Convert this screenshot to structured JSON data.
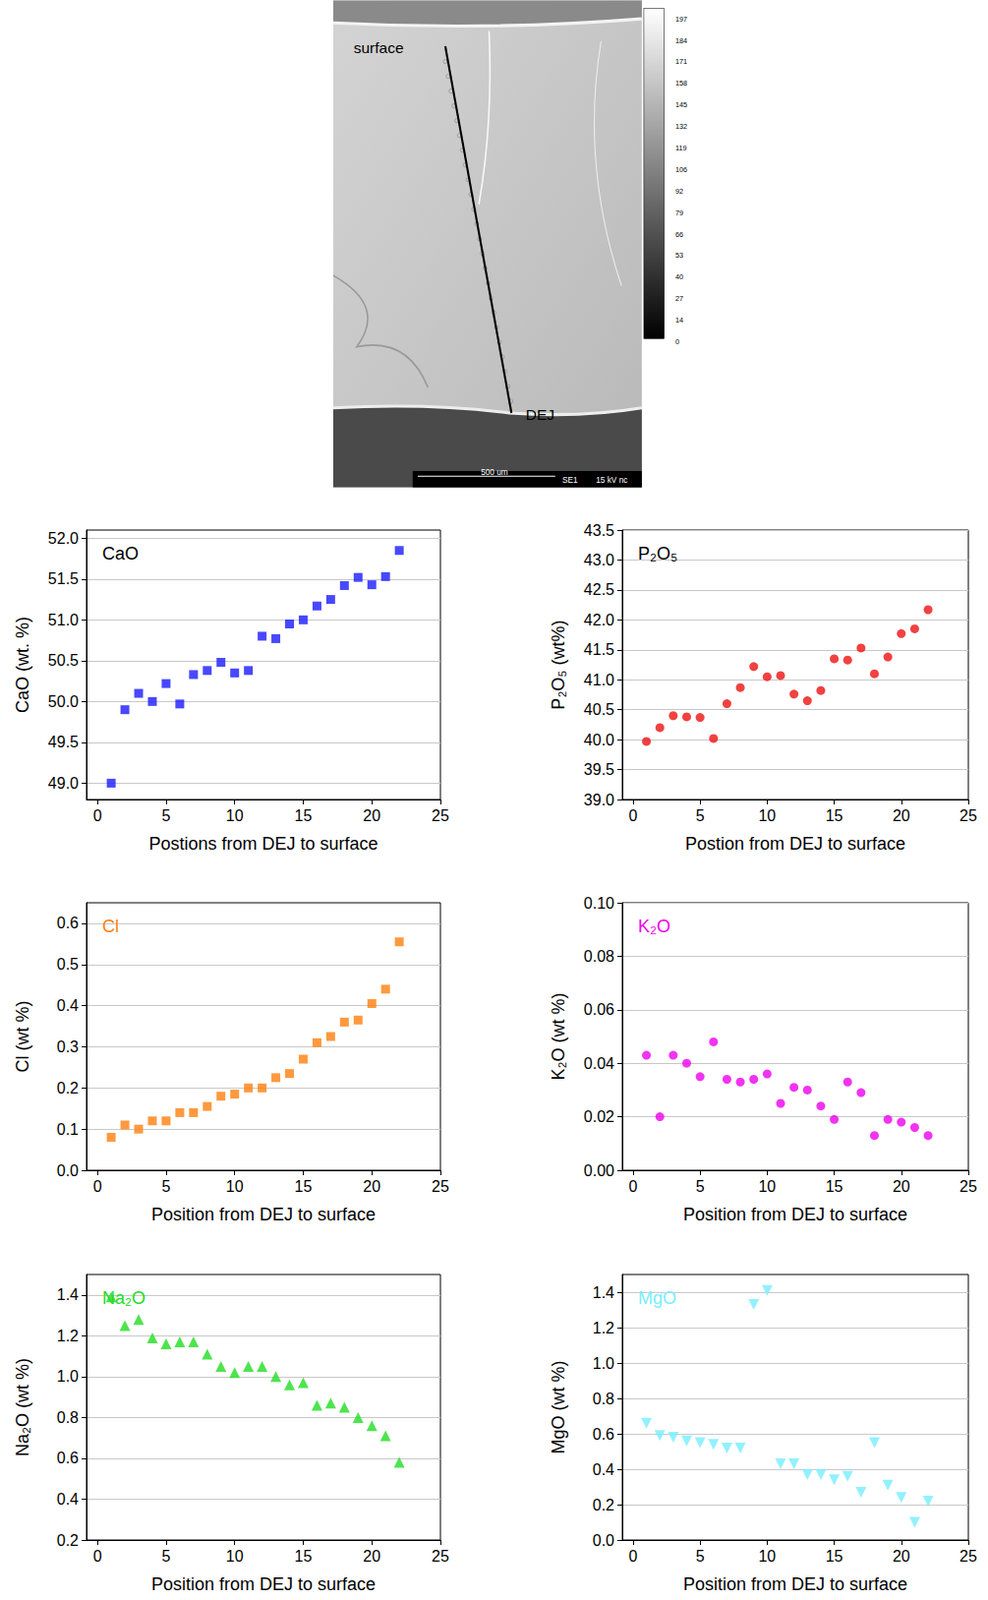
{
  "micrograph": {
    "labels": [
      "surface",
      "DEJ"
    ],
    "colorbar_ticks": [
      197,
      184,
      171,
      158,
      145,
      132,
      119,
      106,
      92,
      79,
      66,
      53,
      40,
      27,
      14,
      0
    ],
    "scale_bar": "500 um",
    "detector": "SE1",
    "voltage": "15 kV nc"
  },
  "chart_data": [
    {
      "type": "scatter",
      "x_label": "Postions from DEJ to surface",
      "y_label": "CaO (wt. %)",
      "legend": "top-left",
      "grid": true,
      "xlim": [
        -0.8,
        25
      ],
      "xticks": [
        0,
        5,
        10,
        15,
        20,
        25
      ],
      "ylim": [
        48.8,
        52.1
      ],
      "yticks": [
        {
          "value": 49,
          "label": "49.0"
        },
        49.5,
        {
          "value": 50,
          "label": "50.0"
        },
        50.5,
        {
          "value": 51,
          "label": "51.0"
        },
        51.5,
        {
          "value": 52,
          "label": "52.0"
        }
      ],
      "x": [
        1,
        2,
        3,
        4,
        5,
        6,
        7,
        8,
        9,
        10,
        11,
        12,
        13,
        14,
        15,
        16,
        17,
        18,
        19,
        20,
        21,
        22
      ],
      "series": [
        {
          "name": "CaO",
          "color": "#1a1aff",
          "marker": "square",
          "values": [
            49.0,
            49.9,
            50.1,
            50.0,
            50.22,
            49.97,
            50.33,
            50.38,
            50.48,
            50.35,
            50.38,
            50.8,
            50.77,
            50.95,
            51.0,
            51.17,
            51.25,
            51.42,
            51.52,
            51.43,
            51.53,
            51.85
          ]
        }
      ]
    },
    {
      "type": "scatter",
      "x_label": "Postion from DEJ to surface",
      "y_label": "P₂O₅ (wt%)",
      "legend": "top-left",
      "grid": true,
      "xlim": [
        -0.8,
        25
      ],
      "xticks": [
        0,
        5,
        10,
        15,
        20,
        25
      ],
      "ylim": [
        39,
        43.5
      ],
      "yticks": [
        {
          "value": 39,
          "label": "39.0"
        },
        39.5,
        {
          "value": 40,
          "label": "40.0"
        },
        40.5,
        {
          "value": 41,
          "label": "41.0"
        },
        41.5,
        {
          "value": 42,
          "label": "42.0"
        },
        42.5,
        {
          "value": 43,
          "label": "43.0"
        },
        43.5
      ],
      "x": [
        1,
        2,
        3,
        4,
        5,
        6,
        7,
        8,
        9,
        10,
        11,
        12,
        13,
        14,
        15,
        16,
        17,
        18,
        19,
        20,
        21,
        22
      ],
      "series": [
        {
          "name": "P₂O₅",
          "color": "#ee1111",
          "marker": "circle",
          "values": [
            39.97,
            40.2,
            40.4,
            40.38,
            40.37,
            40.02,
            40.6,
            40.87,
            41.22,
            41.05,
            41.07,
            40.76,
            40.65,
            40.82,
            41.35,
            41.33,
            41.53,
            41.1,
            41.38,
            41.77,
            41.85,
            42.17
          ]
        }
      ]
    },
    {
      "type": "scatter",
      "x_label": "Position from DEJ to surface",
      "y_label": "Cl (wt %)",
      "legend": "top-left",
      "grid": true,
      "xlim": [
        -0.8,
        25
      ],
      "xticks": [
        0,
        5,
        10,
        15,
        20,
        25
      ],
      "ylim": [
        0,
        0.65
      ],
      "yticks": [
        {
          "value": 0,
          "label": "0.0"
        },
        0.1,
        0.2,
        0.3,
        0.4,
        0.5,
        0.6
      ],
      "x": [
        1,
        2,
        3,
        4,
        5,
        6,
        7,
        8,
        9,
        10,
        11,
        12,
        13,
        14,
        15,
        16,
        17,
        18,
        19,
        20,
        21,
        22
      ],
      "series": [
        {
          "name": "Cl",
          "color": "#ff7f0e",
          "marker": "square",
          "values": [
            0.08,
            0.11,
            0.1,
            0.12,
            0.12,
            0.14,
            0.14,
            0.155,
            0.18,
            0.185,
            0.2,
            0.2,
            0.225,
            0.235,
            0.27,
            0.31,
            0.325,
            0.36,
            0.365,
            0.405,
            0.44,
            0.555
          ]
        }
      ]
    },
    {
      "type": "scatter",
      "x_label": "Position from DEJ to surface",
      "y_label": "K₂O (wt %)",
      "legend": "top-left",
      "grid": true,
      "xlim": [
        -0.8,
        25
      ],
      "xticks": [
        0,
        5,
        10,
        15,
        20,
        25
      ],
      "ylim": [
        0,
        0.1
      ],
      "yticks": [
        {
          "value": 0,
          "label": "0.00"
        },
        0.02,
        0.04,
        0.06,
        0.08,
        {
          "value": 0.1,
          "label": "0.10"
        }
      ],
      "x": [
        1,
        2,
        3,
        4,
        5,
        6,
        7,
        8,
        9,
        10,
        11,
        12,
        13,
        14,
        15,
        16,
        17,
        18,
        19,
        20,
        21,
        22
      ],
      "series": [
        {
          "name": "K₂O",
          "color": "#ee00ee",
          "marker": "circle",
          "values": [
            0.043,
            0.02,
            0.043,
            0.04,
            0.035,
            0.048,
            0.034,
            0.033,
            0.034,
            0.036,
            0.025,
            0.031,
            0.03,
            0.024,
            0.019,
            0.033,
            0.029,
            0.013,
            0.019,
            0.018,
            0.016,
            0.013
          ]
        }
      ]
    },
    {
      "type": "scatter",
      "x_label": "Position from DEJ to surface",
      "y_label": "Na₂O (wt %)",
      "legend": "top-left",
      "grid": true,
      "xlim": [
        -0.8,
        25
      ],
      "xticks": [
        0,
        5,
        10,
        15,
        20,
        25
      ],
      "ylim": [
        0.2,
        1.5
      ],
      "yticks": [
        0.2,
        0.4,
        0.6,
        0.8,
        {
          "value": 1,
          "label": "1.0"
        },
        1.2,
        1.4
      ],
      "x": [
        1,
        2,
        3,
        4,
        5,
        6,
        7,
        8,
        9,
        10,
        11,
        12,
        13,
        14,
        15,
        16,
        17,
        18,
        19,
        20,
        21,
        22
      ],
      "series": [
        {
          "name": "Na₂O",
          "color": "#22dd22",
          "marker": "triangle",
          "values": [
            1.39,
            1.25,
            1.28,
            1.19,
            1.16,
            1.17,
            1.17,
            1.11,
            1.05,
            1.02,
            1.05,
            1.05,
            1.0,
            0.96,
            0.97,
            0.86,
            0.87,
            0.85,
            0.8,
            0.76,
            0.71,
            0.58
          ]
        }
      ]
    },
    {
      "type": "scatter",
      "x_label": "Position from DEJ to surface",
      "y_label": "MgO (wt %)",
      "legend": "top-left",
      "grid": true,
      "xlim": [
        -0.8,
        25
      ],
      "xticks": [
        0,
        5,
        10,
        15,
        20,
        25
      ],
      "ylim": [
        0,
        1.5
      ],
      "yticks": [
        {
          "value": 0,
          "label": "0.0"
        },
        0.2,
        0.4,
        0.6,
        0.8,
        {
          "value": 1,
          "label": "1.0"
        },
        1.2,
        1.4
      ],
      "x": [
        1,
        2,
        3,
        4,
        5,
        6,
        7,
        8,
        9,
        10,
        11,
        12,
        13,
        14,
        15,
        16,
        17,
        18,
        19,
        20,
        21,
        22
      ],
      "series": [
        {
          "name": "MgO",
          "color": "#77eeff",
          "marker": "triangle_down",
          "values": [
            0.66,
            0.59,
            0.58,
            0.56,
            0.55,
            0.54,
            0.52,
            0.52,
            1.33,
            1.41,
            0.43,
            0.43,
            0.37,
            0.37,
            0.34,
            0.36,
            0.27,
            0.55,
            0.31,
            0.24,
            0.1,
            0.22
          ]
        }
      ]
    }
  ]
}
